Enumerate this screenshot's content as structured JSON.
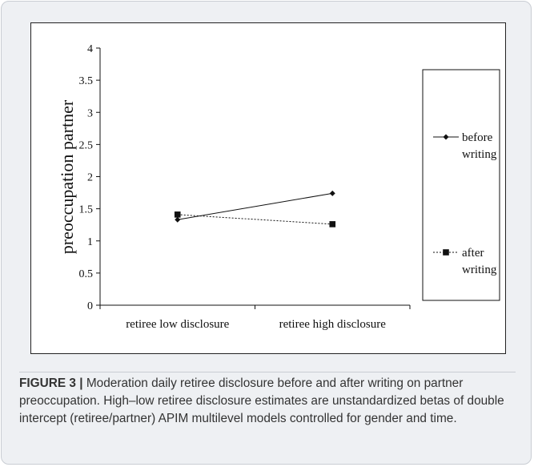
{
  "chart_data": {
    "type": "line",
    "xlabel": "",
    "ylabel": "preoccupation partner",
    "categories": [
      "retiree low disclosure",
      "retiree high disclosure"
    ],
    "ylim": [
      0,
      4
    ],
    "yticks": [
      0,
      0.5,
      1,
      1.5,
      2,
      2.5,
      3,
      3.5,
      4
    ],
    "grid": false,
    "legend_position": "right",
    "series": [
      {
        "name": "before\nwriting",
        "legend_lines": [
          "before",
          "writing"
        ],
        "values": [
          1.33,
          1.74
        ],
        "marker": "diamond",
        "line_style": "solid",
        "color": "#111111"
      },
      {
        "name": "after\nwriting",
        "legend_lines": [
          "after",
          "writing"
        ],
        "values": [
          1.41,
          1.26
        ],
        "marker": "square",
        "line_style": "dotted",
        "color": "#111111"
      }
    ]
  },
  "caption": {
    "label": "FIGURE 3 |",
    "text": " Moderation daily retiree disclosure before and after writing on partner preoccupation. High–low retiree disclosure estimates are unstandardized betas of double intercept (retiree/partner) APIM multilevel models controlled for gender and time."
  },
  "colors": {
    "frame_background": "#eef0f3",
    "caption_text": "#333333",
    "ink": "#111111"
  }
}
